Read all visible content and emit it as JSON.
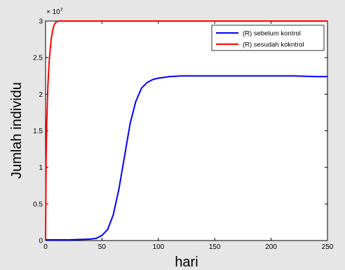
{
  "chart_data": {
    "type": "line",
    "xlabel": "hari",
    "ylabel": "Jumlah individu",
    "xlim": [
      0,
      250
    ],
    "ylim": [
      0,
      3
    ],
    "xticks": [
      "0",
      "50",
      "100",
      "150",
      "200",
      "250"
    ],
    "yticks": [
      "0",
      "0.5",
      "1",
      "1.5",
      "2",
      "2.5",
      "3"
    ],
    "y_multiplier": "× 10",
    "y_multiplier_exp": "7",
    "grid": false,
    "legend_position": "top-right",
    "series": [
      {
        "name": "(R) sebelum kontrol",
        "color": "#0000ff",
        "x": [
          0,
          20,
          40,
          45,
          50,
          55,
          60,
          65,
          70,
          75,
          80,
          85,
          90,
          95,
          100,
          105,
          110,
          115,
          120,
          140,
          160,
          180,
          200,
          220,
          240,
          250
        ],
        "y": [
          0.01,
          0.01,
          0.02,
          0.03,
          0.07,
          0.15,
          0.35,
          0.7,
          1.15,
          1.6,
          1.9,
          2.08,
          2.16,
          2.2,
          2.22,
          2.23,
          2.24,
          2.245,
          2.25,
          2.25,
          2.25,
          2.25,
          2.25,
          2.25,
          2.24,
          2.24
        ]
      },
      {
        "name": "(R) sesudah kokntrol",
        "color": "#ff0000",
        "x": [
          0,
          0.5,
          1,
          2,
          3,
          4,
          5,
          6,
          7,
          8,
          9,
          10,
          11,
          12,
          15,
          20,
          50,
          100,
          150,
          200,
          250
        ],
        "y": [
          0.02,
          1.1,
          1.6,
          2.1,
          2.4,
          2.6,
          2.75,
          2.85,
          2.92,
          2.96,
          2.98,
          2.99,
          3.0,
          3.0,
          3.0,
          3.0,
          3.0,
          3.0,
          3.0,
          3.0,
          3.0
        ]
      }
    ]
  }
}
